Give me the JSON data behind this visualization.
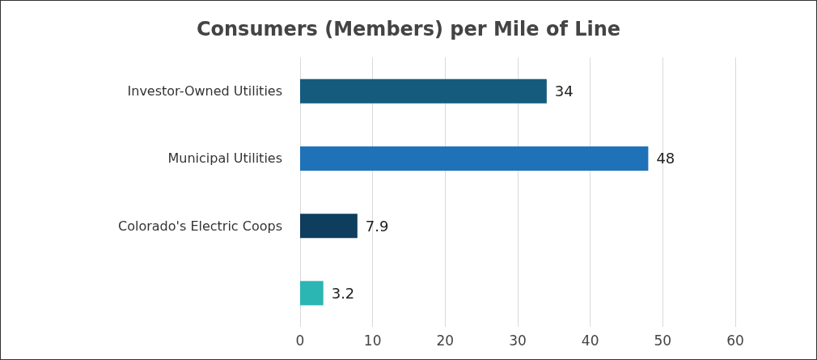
{
  "chart_data": {
    "type": "bar",
    "orientation": "horizontal",
    "title": "Consumers (Members) per Mile of Line",
    "categories": [
      "Investor-Owned Utilities",
      "Municipal Utilities",
      "Colorado's Electric Coops",
      null
    ],
    "values": [
      34,
      48,
      7.9,
      3.2
    ],
    "colors": [
      "#155b7d",
      "#1f72b8",
      "#0f3d5e",
      "#2bb5b3"
    ],
    "xlim": [
      0,
      60
    ],
    "xticks": [
      0,
      10,
      20,
      30,
      40,
      50,
      60
    ],
    "grid": "x",
    "data_labels": true
  }
}
